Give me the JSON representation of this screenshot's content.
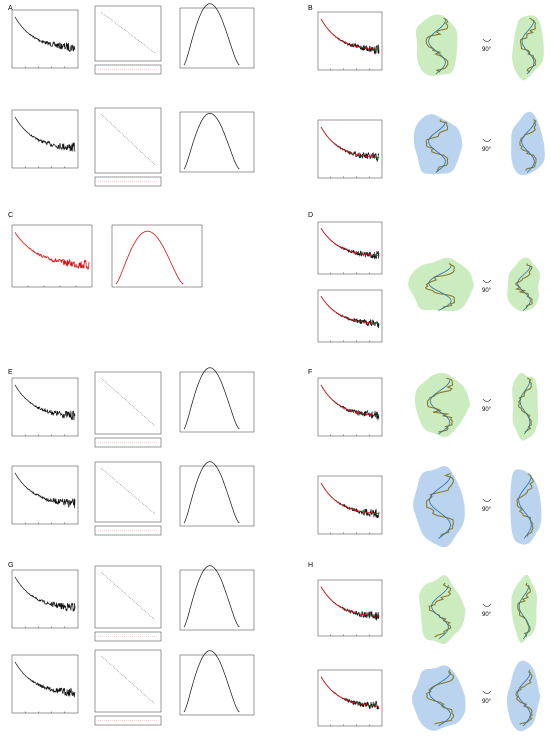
{
  "panels": [
    {
      "id": "A",
      "label": "A"
    },
    {
      "id": "B",
      "label": "B"
    },
    {
      "id": "C",
      "label": "C"
    },
    {
      "id": "D",
      "label": "D"
    },
    {
      "id": "E",
      "label": "E"
    },
    {
      "id": "F",
      "label": "F"
    },
    {
      "id": "G",
      "label": "G"
    },
    {
      "id": "H",
      "label": "H"
    }
  ],
  "rotation_label": "90°",
  "colors": {
    "envelope_green": "#b9e6a8",
    "envelope_blue": "#a9c8ea",
    "fit_line": "#d11111",
    "residuals": "#e33333"
  }
}
